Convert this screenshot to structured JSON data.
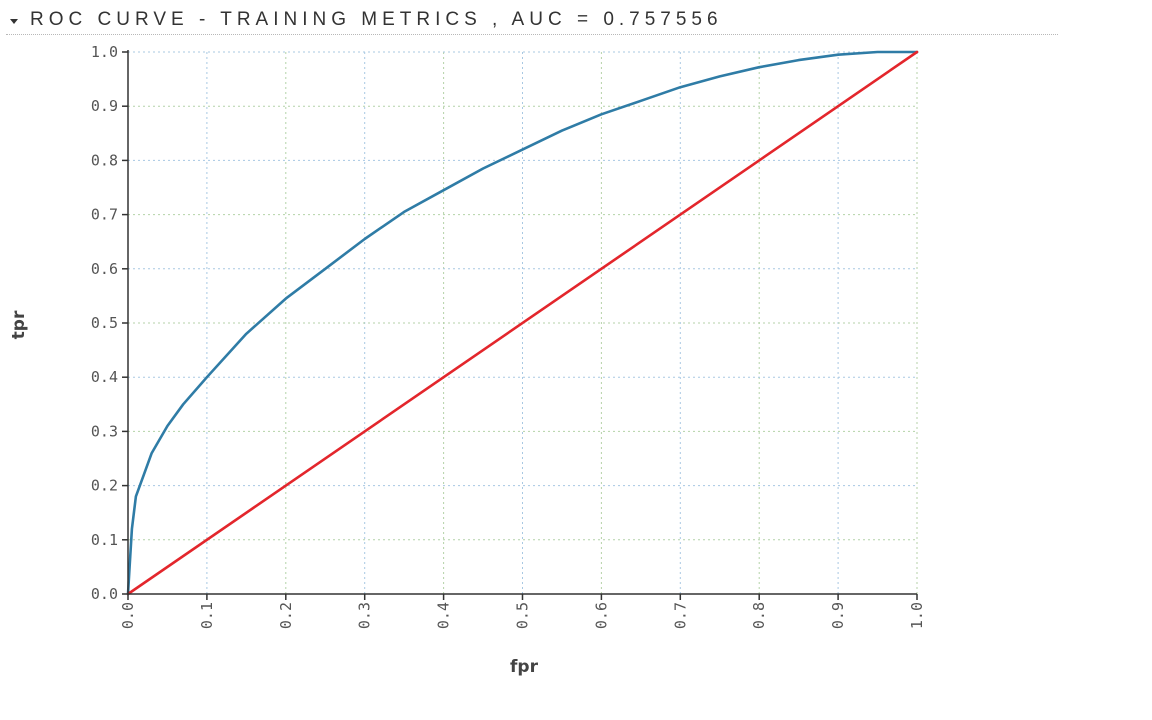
{
  "header": {
    "title": "ROC CURVE - TRAINING METRICS , AUC = 0.757556",
    "icon": "caret-down-icon"
  },
  "chart_data": {
    "type": "line",
    "title": "ROC CURVE - TRAINING METRICS , AUC = 0.757556",
    "xlabel": "fpr",
    "ylabel": "tpr",
    "xlim": [
      0,
      1
    ],
    "ylim": [
      0,
      1
    ],
    "x_ticks": [
      "0.0",
      "0.1",
      "0.2",
      "0.3",
      "0.4",
      "0.5",
      "0.6",
      "0.7",
      "0.8",
      "0.9",
      "1.0"
    ],
    "y_ticks": [
      "0.0",
      "0.1",
      "0.2",
      "0.3",
      "0.4",
      "0.5",
      "0.6",
      "0.7",
      "0.8",
      "0.9",
      "1.0"
    ],
    "grid": true,
    "series": [
      {
        "color": "#2f7ca6",
        "x": [
          0,
          0.002,
          0.005,
          0.01,
          0.02,
          0.03,
          0.05,
          0.07,
          0.1,
          0.15,
          0.2,
          0.25,
          0.3,
          0.35,
          0.4,
          0.45,
          0.5,
          0.55,
          0.6,
          0.65,
          0.7,
          0.75,
          0.8,
          0.85,
          0.9,
          0.95,
          1.0
        ],
        "y": [
          0,
          0.05,
          0.12,
          0.18,
          0.22,
          0.26,
          0.31,
          0.35,
          0.4,
          0.48,
          0.545,
          0.6,
          0.655,
          0.705,
          0.745,
          0.785,
          0.82,
          0.855,
          0.885,
          0.91,
          0.935,
          0.955,
          0.972,
          0.985,
          0.995,
          1.0,
          1.0
        ]
      },
      {
        "color": "#e3262c",
        "x": [
          0,
          1
        ],
        "y": [
          0,
          1
        ]
      }
    ]
  }
}
